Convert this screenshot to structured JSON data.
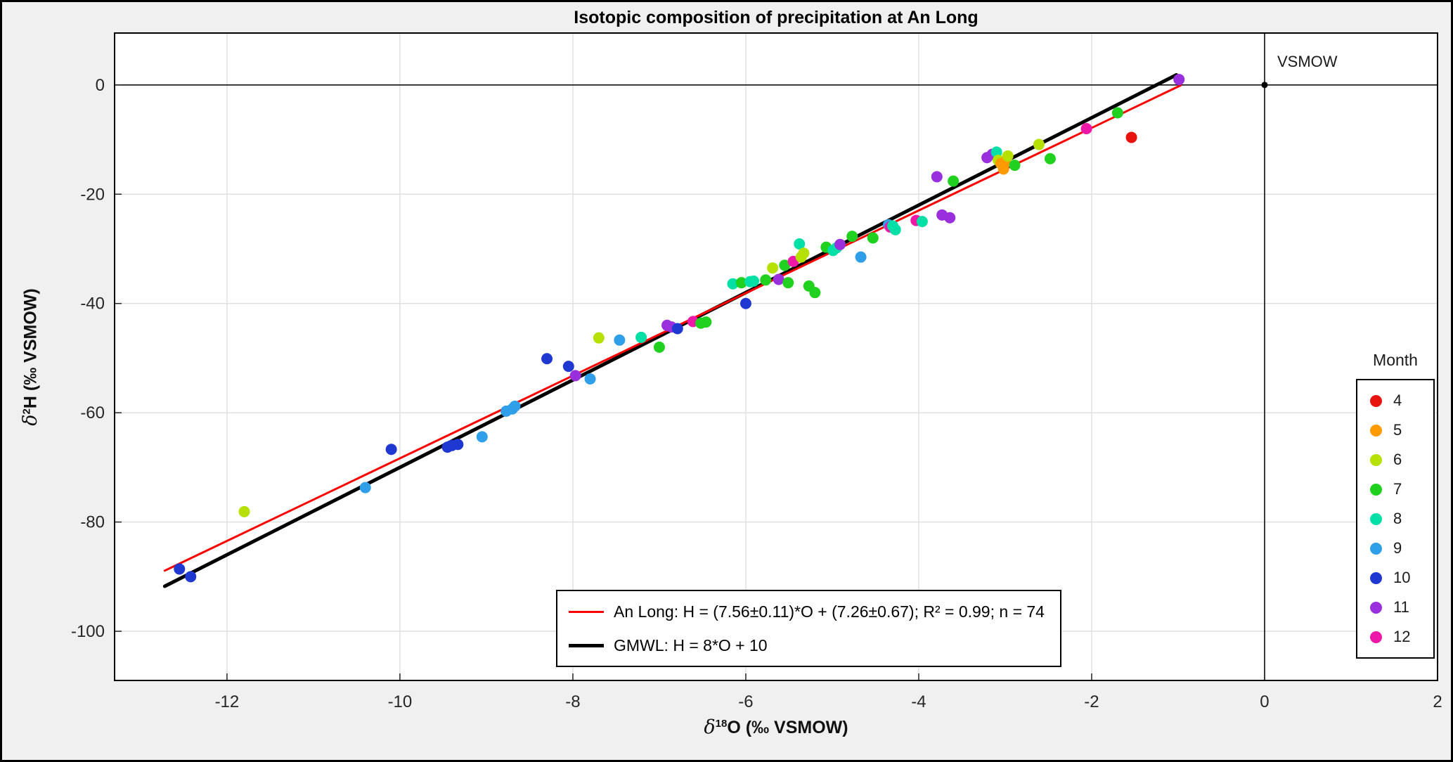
{
  "figure": {
    "background": "#f0f0f0",
    "border_color": "#000000"
  },
  "chart_data": {
    "type": "scatter",
    "title": "Isotopic composition of precipitation at An Long",
    "xlabel": {
      "delta": "δ",
      "sup": "18",
      "rest": "O (‰ VSMOW)"
    },
    "ylabel": {
      "delta": "δ",
      "sup": "2",
      "rest": "H (‰ VSMOW)"
    },
    "xlim": [
      -13.3,
      2
    ],
    "ylim": [
      -109,
      9.5
    ],
    "xticks": [
      -12,
      -10,
      -8,
      -6,
      -4,
      -2,
      0,
      2
    ],
    "yticks": [
      0,
      -20,
      -40,
      -60,
      -80,
      -100
    ],
    "grid": true,
    "style": {
      "plot_bg": "#ffffff",
      "fig_bg": "#f0f0f0",
      "grid": "#e0e0e0",
      "tick": "#262626",
      "box": "#000000"
    },
    "reference": {
      "label": "VSMOW",
      "x": 0,
      "y": 0
    },
    "legend": {
      "title": "Month",
      "position": "right",
      "entries": [
        {
          "month": "4",
          "color": "#e8120f"
        },
        {
          "month": "5",
          "color": "#ff9a00"
        },
        {
          "month": "6",
          "color": "#b5e000"
        },
        {
          "month": "7",
          "color": "#20d11f"
        },
        {
          "month": "8",
          "color": "#00dfa6"
        },
        {
          "month": "9",
          "color": "#2e9fe8"
        },
        {
          "month": "10",
          "color": "#2038d2"
        },
        {
          "month": "11",
          "color": "#9a2fdd"
        },
        {
          "month": "12",
          "color": "#ee18a8"
        }
      ]
    },
    "lines": [
      {
        "name": "an-long-fit",
        "color": "#ff0000",
        "width": 3,
        "slope": 7.56,
        "intercept": 7.26,
        "x_range": [
          -12.72,
          -0.97
        ],
        "label": "An Long: H = (7.56±0.11)*O + (7.26±0.67); R² = 0.99; n = 74"
      },
      {
        "name": "gmwl",
        "color": "#000000",
        "width": 5,
        "slope": 8,
        "intercept": 10,
        "x_range": [
          -12.72,
          -1.02
        ],
        "label": "GMWL: H = 8*O + 10"
      }
    ],
    "points": [
      {
        "x": -12.55,
        "y": -88.6,
        "month": "10"
      },
      {
        "x": -12.42,
        "y": -90.0,
        "month": "10"
      },
      {
        "x": -11.8,
        "y": -78.1,
        "month": "6"
      },
      {
        "x": -10.4,
        "y": -73.7,
        "month": "9"
      },
      {
        "x": -10.1,
        "y": -66.7,
        "month": "10"
      },
      {
        "x": -9.45,
        "y": -66.3,
        "month": "10"
      },
      {
        "x": -9.4,
        "y": -66.0,
        "month": "10"
      },
      {
        "x": -9.33,
        "y": -65.8,
        "month": "10"
      },
      {
        "x": -9.05,
        "y": -64.4,
        "month": "9"
      },
      {
        "x": -8.77,
        "y": -59.7,
        "month": "9"
      },
      {
        "x": -8.7,
        "y": -59.3,
        "month": "9"
      },
      {
        "x": -8.67,
        "y": -58.8,
        "month": "9"
      },
      {
        "x": -8.3,
        "y": -50.1,
        "month": "10"
      },
      {
        "x": -8.05,
        "y": -51.5,
        "month": "10"
      },
      {
        "x": -7.97,
        "y": -53.2,
        "month": "11"
      },
      {
        "x": -7.8,
        "y": -53.8,
        "month": "9"
      },
      {
        "x": -7.7,
        "y": -46.3,
        "month": "6"
      },
      {
        "x": -7.46,
        "y": -46.7,
        "month": "9"
      },
      {
        "x": -7.21,
        "y": -46.2,
        "month": "8"
      },
      {
        "x": -7.0,
        "y": -48.0,
        "month": "7"
      },
      {
        "x": -6.91,
        "y": -44.0,
        "month": "11"
      },
      {
        "x": -6.86,
        "y": -44.3,
        "month": "11"
      },
      {
        "x": -6.79,
        "y": -44.6,
        "month": "10"
      },
      {
        "x": -6.61,
        "y": -43.3,
        "month": "12"
      },
      {
        "x": -6.52,
        "y": -43.6,
        "month": "7"
      },
      {
        "x": -6.46,
        "y": -43.4,
        "month": "7"
      },
      {
        "x": -6.15,
        "y": -36.4,
        "month": "8"
      },
      {
        "x": -6.05,
        "y": -36.2,
        "month": "7"
      },
      {
        "x": -6.0,
        "y": -40.0,
        "month": "10"
      },
      {
        "x": -5.95,
        "y": -36.0,
        "month": "8"
      },
      {
        "x": -5.91,
        "y": -35.9,
        "month": "8"
      },
      {
        "x": -5.77,
        "y": -35.7,
        "month": "7"
      },
      {
        "x": -5.69,
        "y": -33.5,
        "month": "6"
      },
      {
        "x": -5.62,
        "y": -35.6,
        "month": "11"
      },
      {
        "x": -5.55,
        "y": -33.0,
        "month": "7"
      },
      {
        "x": -5.51,
        "y": -36.2,
        "month": "7"
      },
      {
        "x": -5.45,
        "y": -32.3,
        "month": "12"
      },
      {
        "x": -5.38,
        "y": -29.1,
        "month": "8"
      },
      {
        "x": -5.36,
        "y": -31.5,
        "month": "6"
      },
      {
        "x": -5.33,
        "y": -30.8,
        "month": "6"
      },
      {
        "x": -5.27,
        "y": -36.8,
        "month": "7"
      },
      {
        "x": -5.2,
        "y": -38.0,
        "month": "7"
      },
      {
        "x": -5.07,
        "y": -29.7,
        "month": "7"
      },
      {
        "x": -4.99,
        "y": -30.3,
        "month": "8"
      },
      {
        "x": -4.95,
        "y": -29.8,
        "month": "8"
      },
      {
        "x": -4.91,
        "y": -29.2,
        "month": "11"
      },
      {
        "x": -4.77,
        "y": -27.7,
        "month": "7"
      },
      {
        "x": -4.67,
        "y": -31.5,
        "month": "9"
      },
      {
        "x": -4.53,
        "y": -28.0,
        "month": "7"
      },
      {
        "x": -4.35,
        "y": -25.6,
        "month": "9"
      },
      {
        "x": -4.33,
        "y": -26.0,
        "month": "12"
      },
      {
        "x": -4.3,
        "y": -25.8,
        "month": "8"
      },
      {
        "x": -4.27,
        "y": -26.5,
        "month": "8"
      },
      {
        "x": -4.03,
        "y": -24.8,
        "month": "12"
      },
      {
        "x": -3.96,
        "y": -25.0,
        "month": "8"
      },
      {
        "x": -3.79,
        "y": -16.8,
        "month": "11"
      },
      {
        "x": -3.73,
        "y": -23.8,
        "month": "11"
      },
      {
        "x": -3.64,
        "y": -24.3,
        "month": "11"
      },
      {
        "x": -3.6,
        "y": -17.6,
        "month": "7"
      },
      {
        "x": -3.21,
        "y": -13.3,
        "month": "11"
      },
      {
        "x": -3.15,
        "y": -12.7,
        "month": "11"
      },
      {
        "x": -3.1,
        "y": -12.3,
        "month": "8"
      },
      {
        "x": -3.08,
        "y": -13.8,
        "month": "6"
      },
      {
        "x": -3.05,
        "y": -14.4,
        "month": "5"
      },
      {
        "x": -3.02,
        "y": -15.4,
        "month": "5"
      },
      {
        "x": -3.0,
        "y": -14.0,
        "month": "5"
      },
      {
        "x": -2.97,
        "y": -13.0,
        "month": "6"
      },
      {
        "x": -2.89,
        "y": -14.7,
        "month": "7"
      },
      {
        "x": -2.61,
        "y": -10.9,
        "month": "6"
      },
      {
        "x": -2.48,
        "y": -13.5,
        "month": "7"
      },
      {
        "x": -2.06,
        "y": -8.0,
        "month": "12"
      },
      {
        "x": -1.7,
        "y": -5.1,
        "month": "7"
      },
      {
        "x": -1.54,
        "y": -9.6,
        "month": "4"
      },
      {
        "x": -0.99,
        "y": 1.0,
        "month": "11"
      }
    ]
  }
}
